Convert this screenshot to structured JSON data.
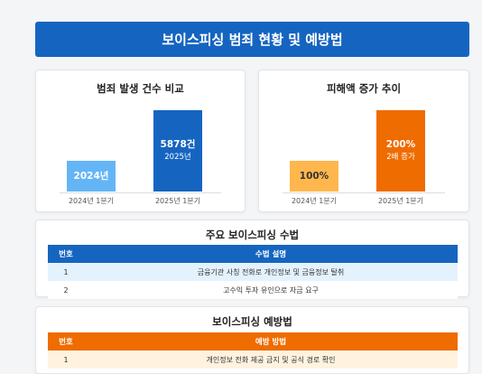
{
  "header": {
    "title": "보이스피싱 범죄 현황 및 예방법"
  },
  "crime_count_chart": {
    "title": "범죄 발생 건수 비교",
    "bars": [
      {
        "category": "2024년 1분기",
        "label": "2024년",
        "sub": "",
        "color": "#64b5f6",
        "text_color": "#ffffff"
      },
      {
        "category": "2025년 1분기",
        "label": "5878건",
        "sub": "2025년",
        "color": "#1565c0",
        "text_color": "#ffffff"
      }
    ]
  },
  "damage_chart": {
    "title": "피해액 증가 추이",
    "bars": [
      {
        "category": "2024년 1분기",
        "label": "100%",
        "sub": "",
        "color": "#ffb74d",
        "text_color": "#333333"
      },
      {
        "category": "2025년 1분기",
        "label": "200%",
        "sub": "2배 증가",
        "color": "#ef6c00",
        "text_color": "#ffffff"
      }
    ]
  },
  "chart_data": [
    {
      "type": "bar",
      "title": "범죄 발생 건수 비교",
      "categories": [
        "2024년 1분기",
        "2025년 1분기"
      ],
      "series": [
        {
          "values": [
            null,
            5878
          ]
        }
      ],
      "value_labels": [
        "2024년",
        "5878건 2025년"
      ],
      "relative_heights": [
        0.38,
        1.0
      ]
    },
    {
      "type": "bar",
      "title": "피해액 증가 추이",
      "categories": [
        "2024년 1분기",
        "2025년 1분기"
      ],
      "series": [
        {
          "values": [
            100,
            200
          ]
        }
      ],
      "unit": "%",
      "value_labels": [
        "100%",
        "200% 2배 증가"
      ],
      "relative_heights": [
        0.38,
        1.0
      ]
    }
  ],
  "methods": {
    "title": "주요 보이스피싱 수법",
    "columns": [
      "번호",
      "수법 설명"
    ],
    "rows": [
      [
        "1",
        "금융기관 사칭 전화로 개인정보 및 금융정보 탈취"
      ],
      [
        "2",
        "고수익 투자 유인으로 자금 요구"
      ]
    ]
  },
  "prevention": {
    "title": "보이스피싱 예방법",
    "columns": [
      "번호",
      "예방 방법"
    ],
    "rows": [
      [
        "1",
        "개인정보 전화 제공 금지 및 공식 경로 확인"
      ]
    ]
  }
}
